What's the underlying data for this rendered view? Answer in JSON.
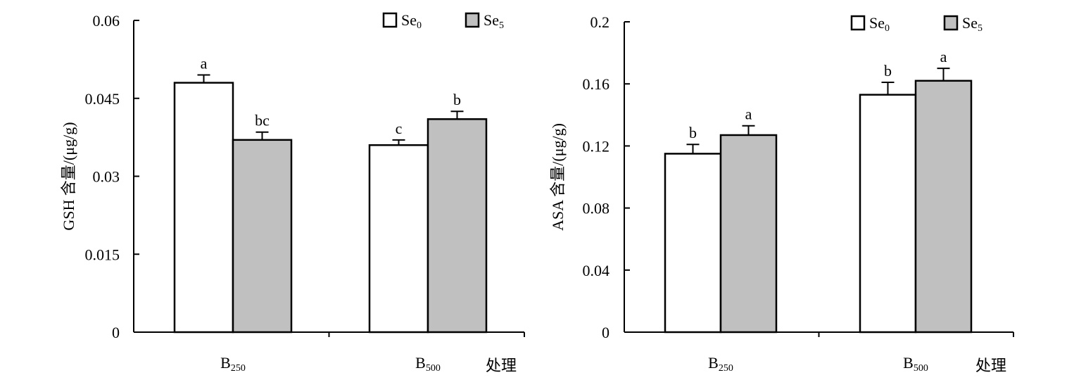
{
  "chart_data": [
    {
      "type": "bar",
      "ylabel": "GSH 含量/(μg/g)",
      "xlabel": "处理",
      "ylim": [
        0,
        0.06
      ],
      "yticks": [
        0,
        0.015,
        0.03,
        0.045,
        0.06
      ],
      "ytick_labels": [
        "0",
        "0.015",
        "0.03",
        "0.045",
        "0.06"
      ],
      "categories": [
        {
          "base": "B",
          "sub": "250"
        },
        {
          "base": "B",
          "sub": "500"
        }
      ],
      "series": [
        {
          "name": "Se0",
          "name_base": "Se",
          "name_sub": "0",
          "color": "#ffffff",
          "values": [
            0.048,
            0.036
          ],
          "errors": [
            0.0015,
            0.001
          ],
          "labels": [
            "a",
            "c"
          ]
        },
        {
          "name": "Se5",
          "name_base": "Se",
          "name_sub": "5",
          "color": "#c0c0c0",
          "values": [
            0.037,
            0.041
          ],
          "errors": [
            0.0015,
            0.0015
          ],
          "labels": [
            "bc",
            "b"
          ]
        }
      ],
      "legend": "top-right",
      "grid": false
    },
    {
      "type": "bar",
      "ylabel": "ASA 含量/(μg/g)",
      "xlabel": "处理",
      "ylim": [
        0,
        0.2
      ],
      "yticks": [
        0,
        0.04,
        0.08,
        0.12,
        0.16,
        0.2
      ],
      "ytick_labels": [
        "0",
        "0.04",
        "0.08",
        "0.12",
        "0.16",
        "0.2"
      ],
      "categories": [
        {
          "base": "B",
          "sub": "250"
        },
        {
          "base": "B",
          "sub": "500"
        }
      ],
      "series": [
        {
          "name": "Se0",
          "name_base": "Se",
          "name_sub": "0",
          "color": "#ffffff",
          "values": [
            0.115,
            0.153
          ],
          "errors": [
            0.006,
            0.008
          ],
          "labels": [
            "b",
            "b"
          ]
        },
        {
          "name": "Se5",
          "name_base": "Se",
          "name_sub": "5",
          "color": "#c0c0c0",
          "values": [
            0.127,
            0.162
          ],
          "errors": [
            0.006,
            0.008
          ],
          "labels": [
            "a",
            "a"
          ]
        }
      ],
      "legend": "top-right",
      "grid": false
    }
  ]
}
